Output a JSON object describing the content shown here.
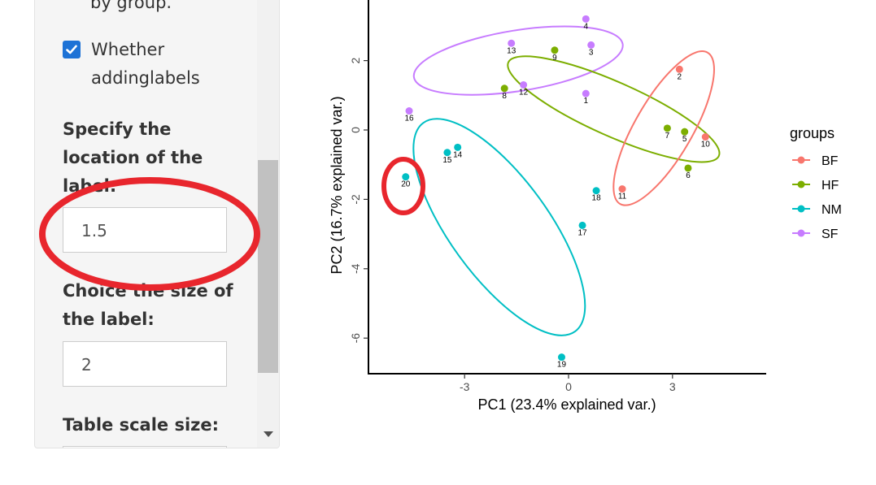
{
  "sidebar": {
    "partial_label": "by group.",
    "checkbox": {
      "label_line1": "Whether",
      "label_line2": "addinglabels",
      "checked": true
    },
    "fields": [
      {
        "label_lines": [
          "Specify the",
          "location of the",
          "label:"
        ],
        "value": "1.5"
      },
      {
        "label_lines": [
          "Choice the size of",
          "the label:"
        ],
        "value": "2"
      },
      {
        "label_lines": [
          "Table scale size:"
        ],
        "value": ""
      }
    ]
  },
  "colors": {
    "BF": "#F8766D",
    "HF": "#7CAE00",
    "NM": "#00BFC4",
    "SF": "#C77CFF",
    "annotation": "#e8262d"
  },
  "chart_data": {
    "type": "scatter",
    "xlabel": "PC1 (23.4% explained var.)",
    "ylabel": "PC2 (16.7% explained var.)",
    "xlim": [
      -5.9,
      5.8
    ],
    "ylim": [
      -7.0,
      3.7
    ],
    "xticks": [
      "-3",
      "0",
      "3"
    ],
    "yticks": [
      "2",
      "0",
      "-2",
      "-4",
      "-6"
    ],
    "legend": {
      "title": "groups",
      "position": "right",
      "entries": [
        "BF",
        "HF",
        "NM",
        "SF"
      ]
    },
    "series": [
      {
        "name": "BF",
        "points": [
          {
            "label": "2",
            "x": 3.2,
            "y": 1.75
          },
          {
            "label": "10",
            "x": 3.95,
            "y": -0.2
          },
          {
            "label": "11",
            "x": 1.55,
            "y": -1.7
          }
        ]
      },
      {
        "name": "HF",
        "points": [
          {
            "label": "9",
            "x": -0.4,
            "y": 2.3
          },
          {
            "label": "8",
            "x": -1.85,
            "y": 1.2
          },
          {
            "label": "7",
            "x": 2.85,
            "y": 0.05
          },
          {
            "label": "5",
            "x": 3.35,
            "y": -0.05
          },
          {
            "label": "6",
            "x": 3.45,
            "y": -1.1
          }
        ]
      },
      {
        "name": "NM",
        "points": [
          {
            "label": "14",
            "x": -3.2,
            "y": -0.5
          },
          {
            "label": "15",
            "x": -3.5,
            "y": -0.65
          },
          {
            "label": "20",
            "x": -4.7,
            "y": -1.35
          },
          {
            "label": "18",
            "x": 0.8,
            "y": -1.75
          },
          {
            "label": "17",
            "x": 0.4,
            "y": -2.75
          },
          {
            "label": "19",
            "x": -0.2,
            "y": -6.55
          }
        ]
      },
      {
        "name": "SF",
        "points": [
          {
            "label": "4",
            "x": 0.5,
            "y": 3.2
          },
          {
            "label": "13",
            "x": -1.65,
            "y": 2.5
          },
          {
            "label": "3",
            "x": 0.65,
            "y": 2.45
          },
          {
            "label": "12",
            "x": -1.3,
            "y": 1.3
          },
          {
            "label": "1",
            "x": 0.5,
            "y": 1.05
          },
          {
            "label": "16",
            "x": -4.6,
            "y": 0.55
          }
        ]
      }
    ],
    "ellipses": [
      {
        "group": "SF",
        "cx": -1.45,
        "cy": 2.0,
        "rx": 6.1,
        "ry": 1.75,
        "angle": -9
      },
      {
        "group": "HF",
        "cx": 1.3,
        "cy": 0.6,
        "rx": 6.65,
        "ry": 1.55,
        "angle": 24
      },
      {
        "group": "BF",
        "cx": 2.75,
        "cy": 0.05,
        "rx": 5.05,
        "ry": 1.65,
        "angle": -60
      },
      {
        "group": "NM",
        "cx": -2.0,
        "cy": -2.8,
        "rx": 7.45,
        "ry": 2.85,
        "angle": 54
      }
    ]
  }
}
